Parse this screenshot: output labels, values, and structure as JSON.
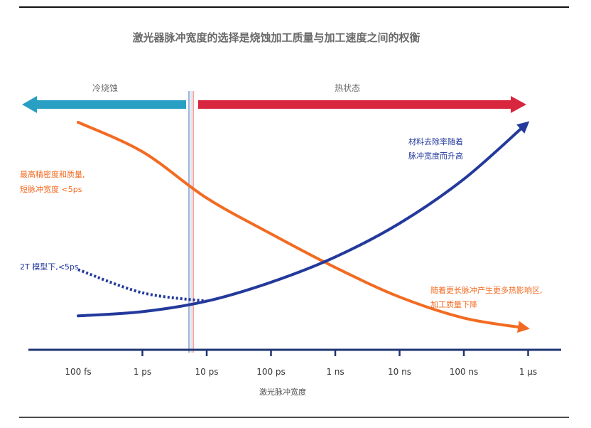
{
  "chart_data": {
    "type": "line",
    "title": "激光器脉冲宽度的选择是烧蚀加工质量与加工速度之间的权衡",
    "xlabel": "激光脉冲宽度",
    "x_scale": "log",
    "x_unit": "s",
    "categories": [
      "100 fs",
      "1 ps",
      "10 ps",
      "100 ps",
      "1 ns",
      "10 ns",
      "100 ns",
      "1 μs"
    ],
    "regions": {
      "cold": {
        "label": "冷烧蚀",
        "direction": "left",
        "color": "#2a9fc4"
      },
      "thermal": {
        "label": "热状态",
        "direction": "right",
        "color": "#d7263d"
      },
      "boundary_at": "10 ps"
    },
    "series": [
      {
        "name": "quality",
        "color": "#f26b22",
        "style": "solid",
        "arrow": "end",
        "x": [
          "100 fs",
          "1 ps",
          "10 ps",
          "100 ps",
          "1 ns",
          "10 ns",
          "100 ns",
          "1 μs"
        ],
        "values": [
          10,
          8.6,
          6.4,
          4.7,
          3.1,
          1.7,
          0.7,
          0.2
        ]
      },
      {
        "name": "removal_rate",
        "color": "#23399b",
        "style": "solid",
        "arrow": "end",
        "x": [
          "100 fs",
          "1 ps",
          "10 ps",
          "100 ps",
          "1 ns",
          "10 ns",
          "100 ns",
          "1 μs"
        ],
        "values": [
          0.8,
          1.0,
          1.5,
          2.4,
          3.6,
          5.2,
          7.3,
          10.0
        ]
      },
      {
        "name": "two_temperature_model",
        "color": "#23399b",
        "style": "dotted",
        "x": [
          "100 fs",
          "1 ps",
          "10 ps"
        ],
        "values": [
          3.0,
          1.9,
          1.5
        ]
      }
    ],
    "annotations": {
      "quality_high": [
        "最高精密度和质量,",
        "短脉冲宽度 <5ps"
      ],
      "two_t": "2T 模型下,<5ps",
      "removal": [
        "材料去除率随着",
        "脉冲宽度而升高"
      ],
      "haz": [
        "随着更长脉冲产生更多热影响区,",
        "加工质量下降"
      ]
    },
    "ylim": [
      0,
      10
    ],
    "grid": false
  },
  "colors": {
    "axis": "#1f3473",
    "rule": "#111111",
    "title": "#6b6b6b",
    "label": "#333333"
  }
}
